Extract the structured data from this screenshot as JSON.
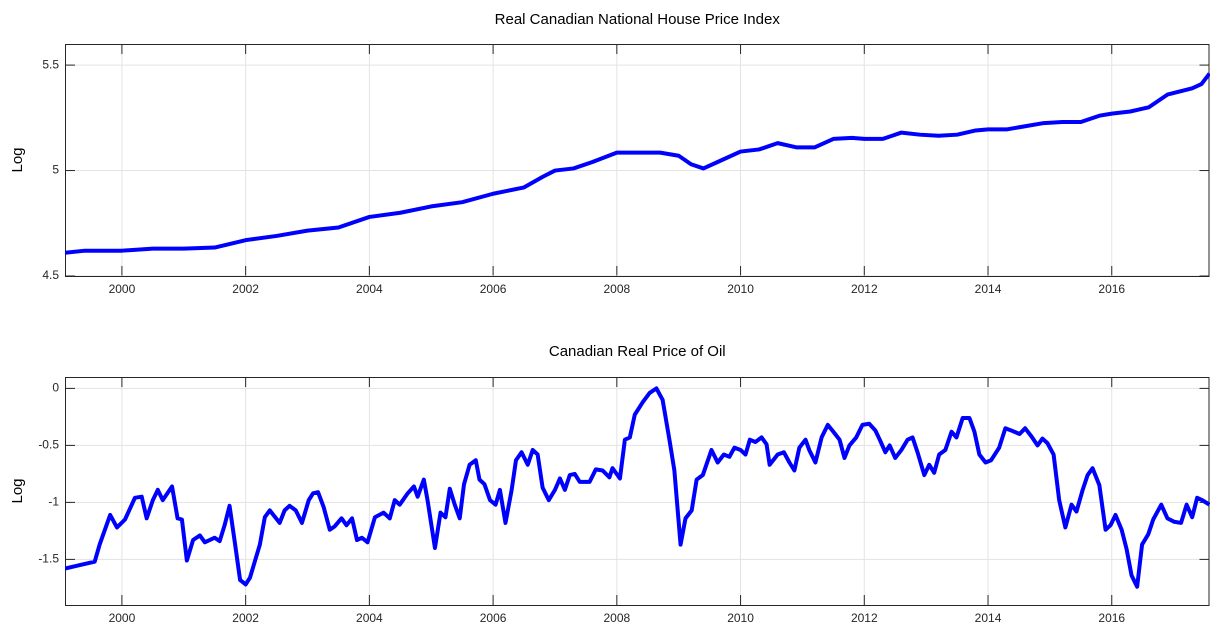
{
  "chart_data": [
    {
      "type": "line",
      "title": "Real Canadian National House Price Index",
      "ylabel": "Log",
      "x": [
        1999.08,
        1999.4,
        1999.75,
        2000.0,
        2000.5,
        2001.0,
        2001.5,
        2002.0,
        2002.5,
        2003.0,
        2003.5,
        2004.0,
        2004.5,
        2005.0,
        2005.5,
        2006.0,
        2006.5,
        2006.8,
        2007.0,
        2007.3,
        2007.6,
        2008.0,
        2008.3,
        2008.7,
        2009.0,
        2009.2,
        2009.4,
        2009.7,
        2010.0,
        2010.3,
        2010.6,
        2010.9,
        2011.2,
        2011.5,
        2011.8,
        2012.0,
        2012.3,
        2012.6,
        2012.9,
        2013.2,
        2013.5,
        2013.8,
        2014.0,
        2014.3,
        2014.6,
        2014.9,
        2015.2,
        2015.5,
        2015.8,
        2016.0,
        2016.3,
        2016.6,
        2016.9,
        2017.1,
        2017.3,
        2017.45,
        2017.58
      ],
      "values": [
        4.61,
        4.62,
        4.62,
        4.62,
        4.63,
        4.63,
        4.635,
        4.67,
        4.69,
        4.715,
        4.73,
        4.78,
        4.8,
        4.83,
        4.85,
        4.89,
        4.92,
        4.97,
        5.0,
        5.01,
        5.04,
        5.085,
        5.085,
        5.085,
        5.07,
        5.03,
        5.01,
        5.05,
        5.09,
        5.1,
        5.13,
        5.11,
        5.11,
        5.15,
        5.155,
        5.15,
        5.15,
        5.18,
        5.17,
        5.165,
        5.17,
        5.19,
        5.195,
        5.195,
        5.21,
        5.225,
        5.23,
        5.23,
        5.26,
        5.27,
        5.28,
        5.3,
        5.36,
        5.375,
        5.39,
        5.41,
        5.46
      ],
      "color": "#0000ff",
      "xlim": [
        1999.08,
        2017.58
      ],
      "ylim": [
        4.5,
        5.6
      ],
      "xticks": [
        2000,
        2002,
        2004,
        2006,
        2008,
        2010,
        2012,
        2014,
        2016
      ],
      "yticks": [
        4.5,
        5,
        5.5
      ],
      "grid": true
    },
    {
      "type": "line",
      "title": "Canadian Real Price of Oil",
      "ylabel": "Log",
      "x": [
        1999.08,
        1999.32,
        1999.56,
        1999.64,
        1999.81,
        1999.92,
        2000.05,
        2000.21,
        2000.32,
        2000.4,
        2000.5,
        2000.58,
        2000.66,
        2000.81,
        2000.9,
        2000.97,
        2001.05,
        2001.15,
        2001.26,
        2001.34,
        2001.5,
        2001.58,
        2001.66,
        2001.74,
        2001.83,
        2001.91,
        2002.0,
        2002.07,
        2002.23,
        2002.31,
        2002.39,
        2002.55,
        2002.63,
        2002.71,
        2002.81,
        2002.91,
        2003.02,
        2003.09,
        2003.17,
        2003.26,
        2003.36,
        2003.44,
        2003.55,
        2003.63,
        2003.72,
        2003.8,
        2003.88,
        2003.97,
        2004.09,
        2004.23,
        2004.33,
        2004.41,
        2004.49,
        2004.62,
        2004.72,
        2004.78,
        2004.88,
        2004.94,
        2005.06,
        2005.15,
        2005.23,
        2005.3,
        2005.38,
        2005.46,
        2005.53,
        2005.62,
        2005.72,
        2005.78,
        2005.86,
        2005.95,
        2006.04,
        2006.11,
        2006.2,
        2006.3,
        2006.37,
        2006.46,
        2006.56,
        2006.64,
        2006.72,
        2006.8,
        2006.9,
        2007.0,
        2007.08,
        2007.16,
        2007.24,
        2007.32,
        2007.4,
        2007.56,
        2007.66,
        2007.77,
        2007.88,
        2007.93,
        2008.05,
        2008.13,
        2008.21,
        2008.29,
        2008.42,
        2008.53,
        2008.64,
        2008.74,
        2008.85,
        2008.93,
        2009.03,
        2009.11,
        2009.21,
        2009.29,
        2009.39,
        2009.53,
        2009.63,
        2009.73,
        2009.82,
        2009.9,
        2010.0,
        2010.08,
        2010.15,
        2010.24,
        2010.34,
        2010.42,
        2010.47,
        2010.6,
        2010.7,
        2010.79,
        2010.87,
        2010.95,
        2011.05,
        2011.11,
        2011.21,
        2011.31,
        2011.41,
        2011.5,
        2011.6,
        2011.68,
        2011.76,
        2011.87,
        2011.97,
        2012.08,
        2012.18,
        2012.25,
        2012.34,
        2012.41,
        2012.5,
        2012.6,
        2012.7,
        2012.78,
        2012.86,
        2012.97,
        2013.05,
        2013.13,
        2013.21,
        2013.31,
        2013.41,
        2013.49,
        2013.59,
        2013.7,
        2013.78,
        2013.86,
        2013.96,
        2014.05,
        2014.18,
        2014.28,
        2014.38,
        2014.51,
        2014.6,
        2014.7,
        2014.8,
        2014.88,
        2014.96,
        2015.06,
        2015.15,
        2015.25,
        2015.35,
        2015.43,
        2015.53,
        2015.61,
        2015.69,
        2015.8,
        2015.9,
        2015.98,
        2016.06,
        2016.16,
        2016.24,
        2016.32,
        2016.41,
        2016.49,
        2016.59,
        2016.67,
        2016.8,
        2016.9,
        2017.01,
        2017.12,
        2017.21,
        2017.3,
        2017.38,
        2017.46,
        2017.58
      ],
      "values": [
        -1.58,
        -1.55,
        -1.52,
        -1.37,
        -1.11,
        -1.22,
        -1.15,
        -0.96,
        -0.95,
        -1.14,
        -0.98,
        -0.89,
        -0.98,
        -0.86,
        -1.14,
        -1.15,
        -1.51,
        -1.33,
        -1.29,
        -1.35,
        -1.31,
        -1.34,
        -1.2,
        -1.03,
        -1.37,
        -1.68,
        -1.72,
        -1.66,
        -1.37,
        -1.13,
        -1.07,
        -1.18,
        -1.07,
        -1.03,
        -1.07,
        -1.18,
        -0.98,
        -0.92,
        -0.91,
        -1.04,
        -1.24,
        -1.21,
        -1.14,
        -1.2,
        -1.14,
        -1.33,
        -1.31,
        -1.35,
        -1.13,
        -1.09,
        -1.14,
        -0.98,
        -1.02,
        -0.92,
        -0.86,
        -0.95,
        -0.8,
        -0.98,
        -1.4,
        -1.09,
        -1.13,
        -0.88,
        -1.02,
        -1.14,
        -0.84,
        -0.67,
        -0.63,
        -0.8,
        -0.84,
        -0.98,
        -1.02,
        -0.89,
        -1.18,
        -0.89,
        -0.63,
        -0.56,
        -0.67,
        -0.54,
        -0.58,
        -0.87,
        -0.98,
        -0.89,
        -0.79,
        -0.89,
        -0.76,
        -0.75,
        -0.82,
        -0.82,
        -0.71,
        -0.72,
        -0.78,
        -0.7,
        -0.79,
        -0.45,
        -0.43,
        -0.23,
        -0.12,
        -0.04,
        0.0,
        -0.1,
        -0.45,
        -0.72,
        -1.37,
        -1.14,
        -1.07,
        -0.8,
        -0.76,
        -0.54,
        -0.65,
        -0.58,
        -0.6,
        -0.52,
        -0.54,
        -0.58,
        -0.45,
        -0.47,
        -0.43,
        -0.49,
        -0.67,
        -0.58,
        -0.56,
        -0.65,
        -0.72,
        -0.52,
        -0.45,
        -0.54,
        -0.65,
        -0.43,
        -0.32,
        -0.38,
        -0.45,
        -0.61,
        -0.5,
        -0.43,
        -0.32,
        -0.31,
        -0.37,
        -0.45,
        -0.56,
        -0.5,
        -0.61,
        -0.54,
        -0.45,
        -0.43,
        -0.56,
        -0.76,
        -0.67,
        -0.74,
        -0.58,
        -0.54,
        -0.38,
        -0.43,
        -0.26,
        -0.26,
        -0.38,
        -0.58,
        -0.65,
        -0.63,
        -0.52,
        -0.35,
        -0.37,
        -0.4,
        -0.35,
        -0.42,
        -0.5,
        -0.44,
        -0.48,
        -0.58,
        -0.98,
        -1.22,
        -1.02,
        -1.08,
        -0.89,
        -0.76,
        -0.7,
        -0.85,
        -1.24,
        -1.2,
        -1.11,
        -1.24,
        -1.41,
        -1.64,
        -1.74,
        -1.37,
        -1.28,
        -1.15,
        -1.02,
        -1.14,
        -1.17,
        -1.18,
        -1.02,
        -1.13,
        -0.96,
        -0.98,
        -1.02
      ],
      "color": "#0000ff",
      "xlim": [
        1999.08,
        2017.58
      ],
      "ylim": [
        -1.9,
        0.1
      ],
      "xticks": [
        2000,
        2002,
        2004,
        2006,
        2008,
        2010,
        2012,
        2014,
        2016
      ],
      "yticks": [
        -1.5,
        -1,
        -0.5,
        0
      ],
      "grid": true
    }
  ]
}
